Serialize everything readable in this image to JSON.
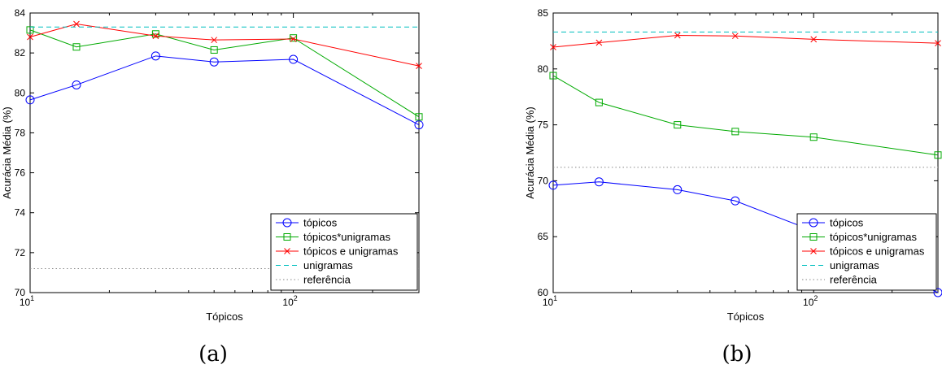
{
  "chart_data": [
    {
      "type": "line",
      "caption": "(a)",
      "xlabel": "Tópicos",
      "ylabel": "Acurácia Média (%)",
      "xscale": "log",
      "xlim": [
        10,
        300
      ],
      "ylim": [
        70,
        84
      ],
      "yticks": [
        70,
        72,
        74,
        76,
        78,
        80,
        82,
        84
      ],
      "xticks": [
        {
          "value": 10,
          "base": "10",
          "exp": "1"
        },
        {
          "value": 100,
          "base": "10",
          "exp": "2"
        }
      ],
      "grid": false,
      "legend_position": "lower-right",
      "series": [
        {
          "name": "tópicos",
          "color": "#0000ff",
          "style": "solid",
          "marker": "circle",
          "x": [
            10,
            15,
            30,
            50,
            100,
            300
          ],
          "y": [
            79.65,
            80.4,
            81.85,
            81.55,
            81.68,
            78.4
          ]
        },
        {
          "name": "tópicos*unigramas",
          "color": "#00aa00",
          "style": "solid",
          "marker": "square",
          "x": [
            10,
            15,
            30,
            50,
            100,
            300
          ],
          "y": [
            83.15,
            82.3,
            82.95,
            82.15,
            82.75,
            78.8
          ]
        },
        {
          "name": "tópicos e unigramas",
          "color": "#ff0000",
          "style": "solid",
          "marker": "x",
          "x": [
            10,
            15,
            30,
            50,
            100,
            300
          ],
          "y": [
            82.8,
            83.45,
            82.85,
            82.65,
            82.7,
            81.35
          ]
        },
        {
          "name": "unigramas",
          "color": "#00bfbf",
          "style": "dashed",
          "marker": "none",
          "x": [
            10,
            300
          ],
          "y": [
            83.3,
            83.3
          ]
        },
        {
          "name": "referência",
          "color": "#888888",
          "style": "dotted",
          "marker": "none",
          "x": [
            10,
            300
          ],
          "y": [
            71.2,
            71.2
          ]
        }
      ]
    },
    {
      "type": "line",
      "caption": "(b)",
      "xlabel": "Tópicos",
      "ylabel": "Acurácia Média (%)",
      "xscale": "log",
      "xlim": [
        10,
        300
      ],
      "ylim": [
        60,
        85
      ],
      "yticks": [
        60,
        65,
        70,
        75,
        80,
        85
      ],
      "xticks": [
        {
          "value": 10,
          "base": "10",
          "exp": "1"
        },
        {
          "value": 100,
          "base": "10",
          "exp": "2"
        }
      ],
      "grid": false,
      "legend_position": "lower-right",
      "series": [
        {
          "name": "tópicos",
          "color": "#0000ff",
          "style": "solid",
          "marker": "circle",
          "x": [
            10,
            15,
            30,
            50,
            100,
            300
          ],
          "y": [
            69.6,
            69.9,
            69.2,
            68.2,
            65.5,
            60.0
          ]
        },
        {
          "name": "tópicos*unigramas",
          "color": "#00aa00",
          "style": "solid",
          "marker": "square",
          "x": [
            10,
            15,
            30,
            50,
            100,
            300
          ],
          "y": [
            79.4,
            77.0,
            75.0,
            74.4,
            73.9,
            72.3
          ]
        },
        {
          "name": "tópicos e unigramas",
          "color": "#ff0000",
          "style": "solid",
          "marker": "x",
          "x": [
            10,
            15,
            30,
            50,
            100,
            300
          ],
          "y": [
            81.95,
            82.35,
            83.0,
            82.95,
            82.65,
            82.3
          ]
        },
        {
          "name": "unigramas",
          "color": "#00bfbf",
          "style": "dashed",
          "marker": "none",
          "x": [
            10,
            300
          ],
          "y": [
            83.3,
            83.3
          ]
        },
        {
          "name": "referência",
          "color": "#888888",
          "style": "dotted",
          "marker": "none",
          "x": [
            10,
            300
          ],
          "y": [
            71.2,
            71.2
          ]
        }
      ]
    }
  ]
}
